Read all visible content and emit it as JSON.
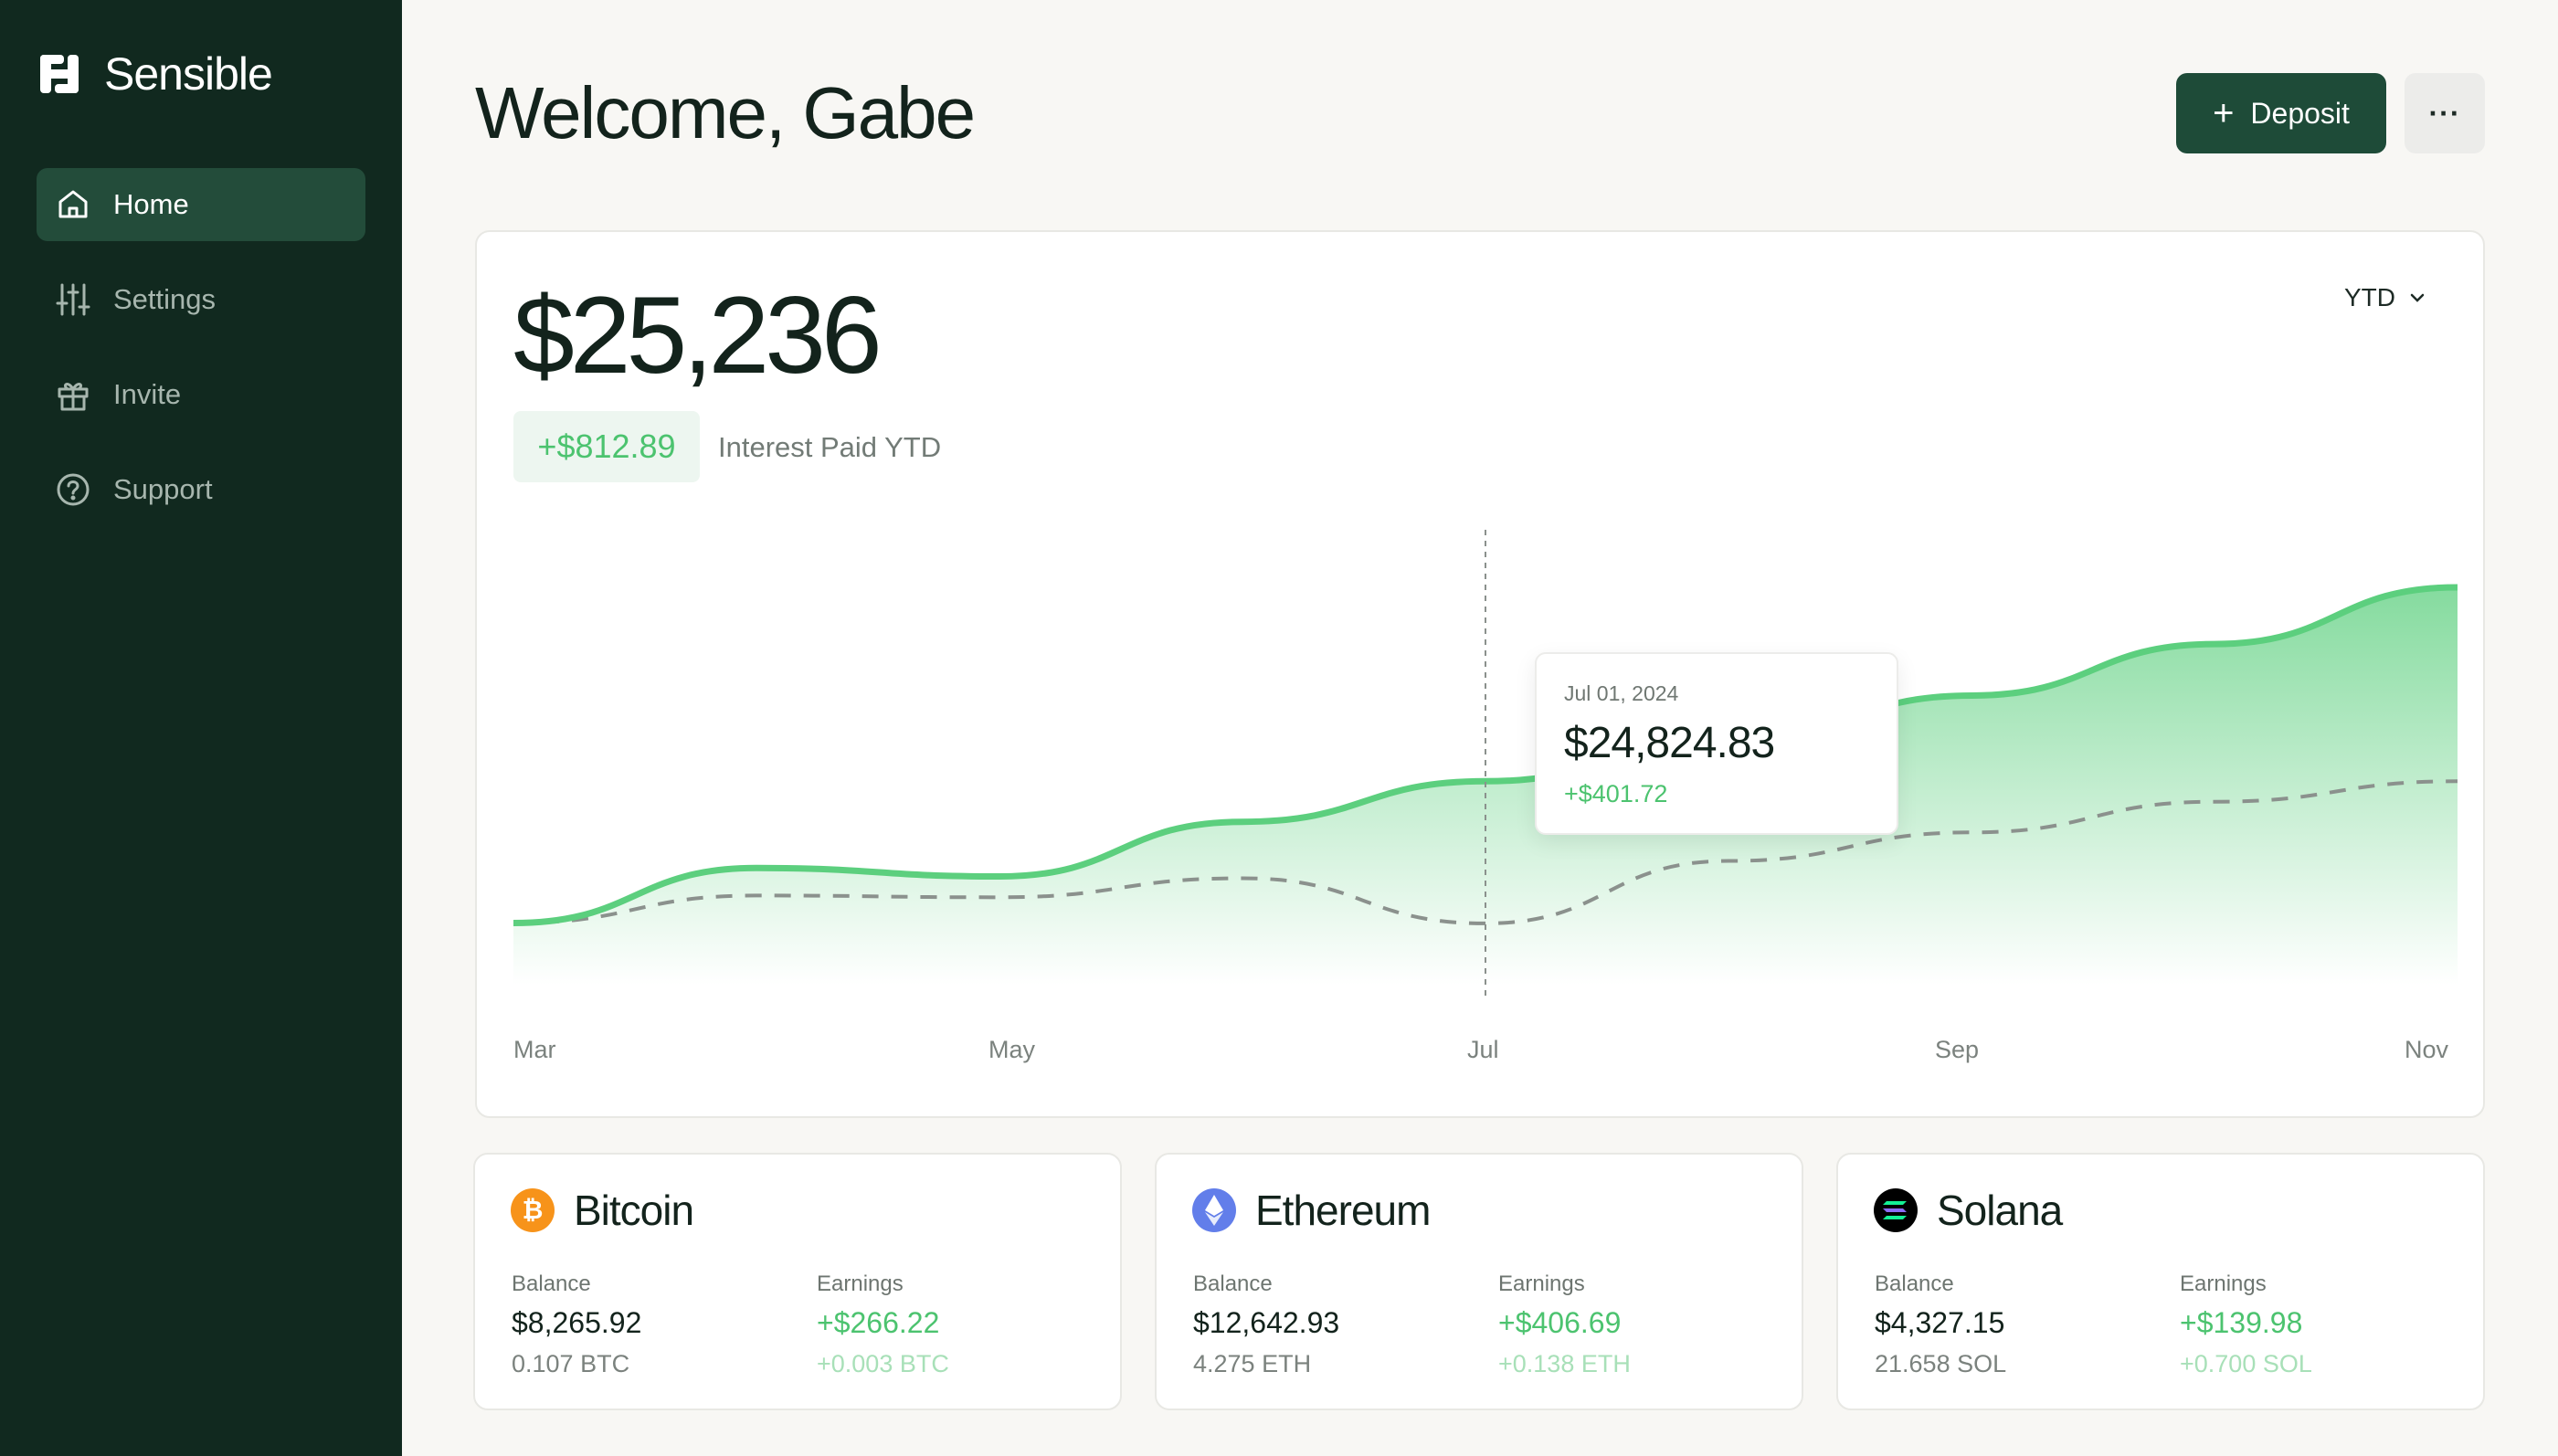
{
  "app": {
    "name": "Sensible"
  },
  "sidebar": {
    "items": [
      {
        "label": "Home",
        "icon": "home-icon",
        "active": true
      },
      {
        "label": "Settings",
        "icon": "sliders-icon",
        "active": false
      },
      {
        "label": "Invite",
        "icon": "gift-icon",
        "active": false
      },
      {
        "label": "Support",
        "icon": "help-circle-icon",
        "active": false
      }
    ]
  },
  "header": {
    "title": "Welcome, Gabe",
    "deposit_label": "Deposit",
    "more_label": "···"
  },
  "summary": {
    "balance": "$25,236",
    "interest_amount": "+$812.89",
    "interest_label": "Interest Paid YTD",
    "period": "YTD"
  },
  "tooltip": {
    "date": "Jul 01, 2024",
    "value": "$24,824.83",
    "delta": "+$401.72"
  },
  "chart_data": {
    "type": "area",
    "x_labels": [
      "Mar",
      "May",
      "Jul",
      "Sep",
      "Nov"
    ],
    "x": [
      "2024-03-01",
      "2024-04-01",
      "2024-05-01",
      "2024-06-01",
      "2024-07-01",
      "2024-08-01",
      "2024-09-01",
      "2024-10-01",
      "2024-11-01"
    ],
    "series": [
      {
        "style": "solid-area",
        "color": "#5ccf7e",
        "values": [
          24423,
          24579,
          24555,
          24710,
          24825,
          24939,
          25068,
          25214,
          25375
        ]
      },
      {
        "style": "dashed",
        "color": "#8b918d",
        "values": [
          24423,
          24501,
          24496,
          24550,
          24422,
          24599,
          24680,
          24767,
          24825
        ]
      }
    ],
    "highlight_x": "2024-07-01",
    "grid": false
  },
  "colors": {
    "sidebar_bg": "#11291f",
    "accent": "#1e4b38",
    "positive": "#4cc36f",
    "chart_line": "#5ccf7e"
  },
  "assets": [
    {
      "name": "Bitcoin",
      "icon": "bitcoin-icon",
      "color": "#f7931a",
      "balance_label": "Balance",
      "balance": "$8,265.92",
      "balance_sub": "0.107 BTC",
      "earnings_label": "Earnings",
      "earnings": "+$266.22",
      "earnings_sub": "+0.003 BTC"
    },
    {
      "name": "Ethereum",
      "icon": "ethereum-icon",
      "color": "#627eea",
      "balance_label": "Balance",
      "balance": "$12,642.93",
      "balance_sub": "4.275 ETH",
      "earnings_label": "Earnings",
      "earnings": "+$406.69",
      "earnings_sub": "+0.138 ETH"
    },
    {
      "name": "Solana",
      "icon": "solana-icon",
      "color": "#000000",
      "balance_label": "Balance",
      "balance": "$4,327.15",
      "balance_sub": "21.658 SOL",
      "earnings_label": "Earnings",
      "earnings": "+$139.98",
      "earnings_sub": "+0.700 SOL"
    }
  ]
}
